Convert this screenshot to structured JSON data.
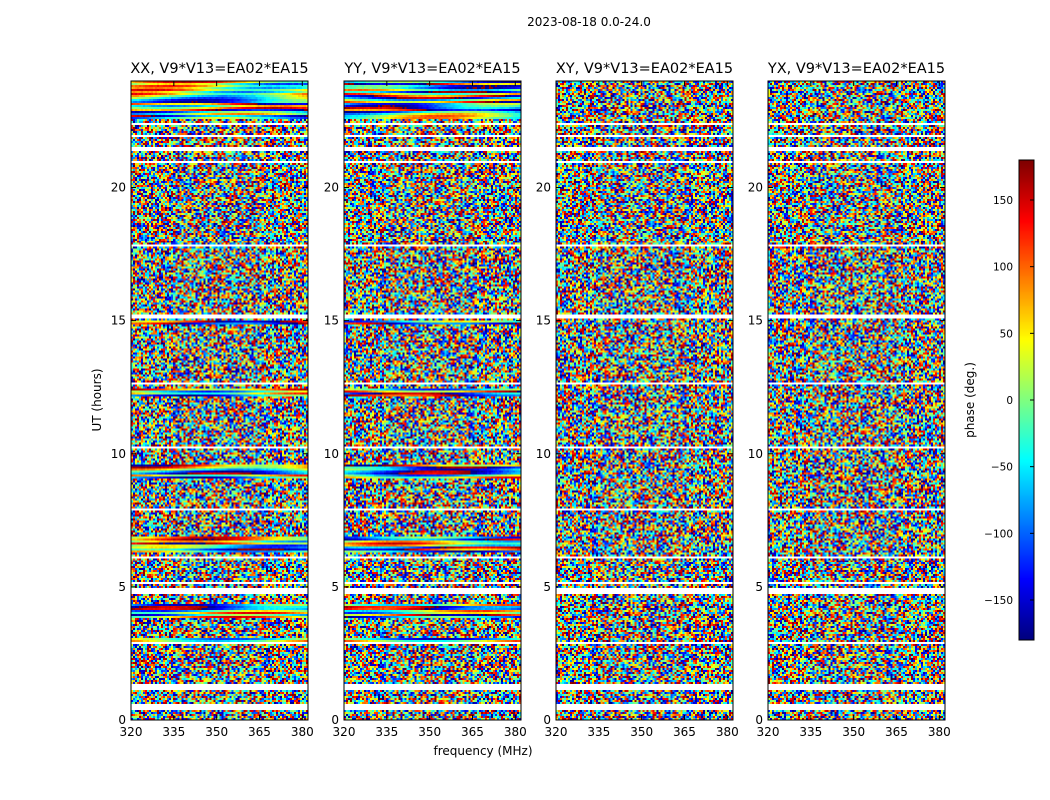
{
  "chart_data": {
    "type": "heatmap",
    "suptitle": "2023-08-18 0.0-24.0",
    "xlabel": "frequency (MHz)",
    "ylabel": "UT (hours)",
    "xlim": [
      320,
      382
    ],
    "ylim": [
      0,
      24
    ],
    "xticks": [
      320,
      335,
      350,
      365,
      380
    ],
    "yticks": [
      0,
      5,
      10,
      15,
      20
    ],
    "panels": [
      {
        "title": "XX, V9*V13=EA02*EA15",
        "polarization": "XX",
        "coherence": "high"
      },
      {
        "title": "YY, V9*V13=EA02*EA15",
        "polarization": "YY",
        "coherence": "high"
      },
      {
        "title": "XY, V9*V13=EA02*EA15",
        "polarization": "XY",
        "coherence": "low"
      },
      {
        "title": "YX, V9*V13=EA02*EA15",
        "polarization": "YX",
        "coherence": "low"
      }
    ],
    "colorbar": {
      "label": "phase (deg.)",
      "range": [
        -180,
        180
      ],
      "ticks": [
        -150,
        -100,
        -50,
        0,
        50,
        100,
        150
      ],
      "tick_labels": [
        "−150",
        "−100",
        "−50",
        "0",
        "50",
        "100",
        "150"
      ],
      "colormap": "jet"
    },
    "flagged_ut_ranges": [
      [
        22.35,
        22.45
      ],
      [
        21.9,
        22.0
      ],
      [
        21.35,
        21.55
      ],
      [
        20.9,
        21.0
      ],
      [
        19.55,
        19.6
      ],
      [
        17.75,
        17.82
      ],
      [
        15.1,
        15.25
      ],
      [
        12.6,
        12.7
      ],
      [
        10.2,
        10.3
      ],
      [
        7.9,
        7.95
      ],
      [
        6.05,
        6.12
      ],
      [
        5.1,
        5.15
      ],
      [
        4.72,
        4.95
      ],
      [
        3.5,
        3.55
      ],
      [
        2.82,
        2.9
      ],
      [
        1.1,
        1.35
      ],
      [
        0.35,
        0.58
      ]
    ],
    "coherent_ut_bands": [
      {
        "ut": [
          22.55,
          24.0
        ],
        "panels": [
          "XX",
          "YY"
        ]
      },
      {
        "ut": [
          14.85,
          15.0
        ],
        "panels": [
          "XX",
          "YY"
        ]
      },
      {
        "ut": [
          12.15,
          12.45
        ],
        "panels": [
          "XX",
          "YY"
        ]
      },
      {
        "ut": [
          9.05,
          9.6
        ],
        "panels": [
          "XX",
          "YY"
        ]
      },
      {
        "ut": [
          6.3,
          6.9
        ],
        "panels": [
          "XX",
          "YY"
        ]
      },
      {
        "ut": [
          3.85,
          4.35
        ],
        "panels": [
          "XX",
          "YY"
        ]
      },
      {
        "ut": [
          2.95,
          3.05
        ],
        "panels": [
          "XX",
          "YY"
        ]
      }
    ]
  }
}
